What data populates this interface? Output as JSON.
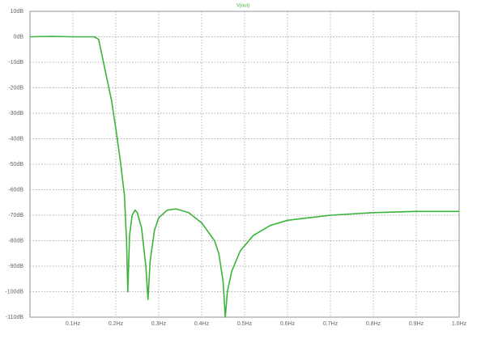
{
  "chart_data": {
    "type": "line",
    "title": "V(out)",
    "x": [
      0,
      0.05,
      0.1,
      0.15,
      0.16,
      0.17,
      0.18,
      0.19,
      0.2,
      0.21,
      0.22,
      0.225,
      0.228,
      0.232,
      0.238,
      0.245,
      0.25,
      0.26,
      0.27,
      0.275,
      0.28,
      0.29,
      0.3,
      0.32,
      0.34,
      0.37,
      0.4,
      0.43,
      0.44,
      0.45,
      0.455,
      0.46,
      0.47,
      0.49,
      0.52,
      0.56,
      0.6,
      0.7,
      0.8,
      0.9,
      1.0
    ],
    "series": [
      {
        "name": "V(out)",
        "color": "#3cb43c",
        "values": [
          0,
          0.2,
          0,
          0,
          -1,
          -9,
          -17,
          -25,
          -36,
          -48,
          -62,
          -80,
          -100,
          -78,
          -70,
          -68,
          -69,
          -75,
          -90,
          -103,
          -88,
          -76,
          -71,
          -68,
          -67.5,
          -69,
          -73,
          -80,
          -85,
          -96,
          -110,
          -100,
          -92,
          -84,
          -78,
          -74,
          -72,
          -70,
          -69,
          -68.5,
          -68.5
        ]
      }
    ],
    "xlim": [
      0,
      1.0
    ],
    "xticks": [
      {
        "value": 0.1,
        "label": "0.1Hz"
      },
      {
        "value": 0.2,
        "label": "0.2Hz"
      },
      {
        "value": 0.3,
        "label": "0.3Hz"
      },
      {
        "value": 0.4,
        "label": "0.4Hz"
      },
      {
        "value": 0.5,
        "label": "0.5Hz"
      },
      {
        "value": 0.6,
        "label": "0.6Hz"
      },
      {
        "value": 0.7,
        "label": "0.7Hz"
      },
      {
        "value": 0.8,
        "label": "0.8Hz"
      },
      {
        "value": 0.9,
        "label": "0.9Hz"
      },
      {
        "value": 1.0,
        "label": "1.0Hz"
      }
    ],
    "ylim": [
      -110,
      10
    ],
    "yticks": [
      {
        "value": 10,
        "label": "10dB"
      },
      {
        "value": 0,
        "label": "0dB"
      },
      {
        "value": -10,
        "label": "-10dB"
      },
      {
        "value": -20,
        "label": "-20dB"
      },
      {
        "value": -30,
        "label": "-30dB"
      },
      {
        "value": -40,
        "label": "-40dB"
      },
      {
        "value": -50,
        "label": "-50dB"
      },
      {
        "value": -60,
        "label": "-60dB"
      },
      {
        "value": -70,
        "label": "-70dB"
      },
      {
        "value": -80,
        "label": "-80dB"
      },
      {
        "value": -90,
        "label": "-90dB"
      },
      {
        "value": -100,
        "label": "-100dB"
      },
      {
        "value": -110,
        "label": "-110dB"
      }
    ],
    "grid": true
  }
}
